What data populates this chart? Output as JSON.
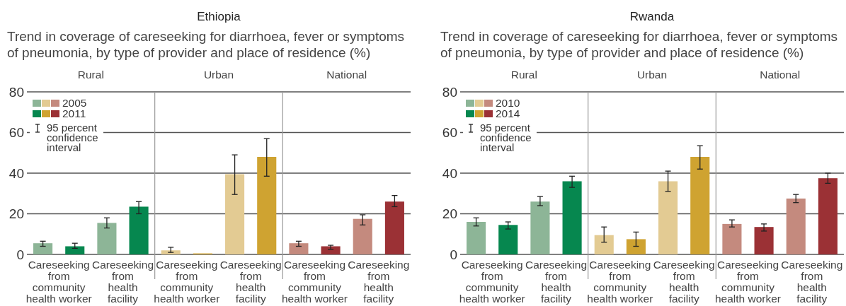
{
  "chart_data": [
    {
      "type": "bar",
      "title": "Ethiopia",
      "subtitle": "Trend in coverage of careseeking for diarrhoea, fever or symptoms of pneumonia, by type of provider and place of residence (%)",
      "categories": [
        "Careseeking\nfrom\ncommunity\nhealth worker",
        "Careseeking\nfrom\nhealth\nfacility",
        "Careseeking\nfrom\ncommunity\nhealth worker",
        "Careseeking\nfrom\nhealth\nfacility",
        "Careseeking\nfrom\ncommunity\nhealth worker",
        "Careseeking\nfrom\nhealth\nfacility"
      ],
      "series": [
        {
          "name": "2005",
          "colors": [
            "#8db597",
            "#8db597",
            "#e3cb93",
            "#e3cb93",
            "#c48a7e",
            "#c48a7e"
          ],
          "values": [
            5.5,
            15.5,
            2,
            39.5,
            5.5,
            17.5
          ],
          "errors": [
            [
              4,
              6.5
            ],
            [
              13,
              18
            ],
            [
              1,
              3.5
            ],
            [
              29.5,
              49
            ],
            [
              4,
              6.5
            ],
            [
              14.5,
              19.5
            ]
          ]
        },
        {
          "name": "2011",
          "colors": [
            "#06874f",
            "#06874f",
            "#cfa331",
            "#cfa331",
            "#9b3135",
            "#9b3135"
          ],
          "values": [
            4,
            23.5,
            0.5,
            48,
            4,
            26
          ],
          "errors": [
            [
              3,
              5.5
            ],
            [
              20,
              26
            ],
            null,
            [
              38.5,
              57
            ],
            [
              2.5,
              4.5
            ],
            [
              23.5,
              29
            ]
          ]
        }
      ],
      "ylim": [
        0,
        80
      ],
      "yticks": [
        0,
        20,
        40,
        60,
        80
      ],
      "grid": "y",
      "legend": "top left",
      "annotations": [
        "Rural",
        "Urban",
        "National",
        "95 percent confidence interval"
      ]
    },
    {
      "type": "bar",
      "title": "Rwanda",
      "subtitle": "Trend in coverage of careseeking for diarrhoea, fever or symptoms of pneumonia, by type of provider and place of residence (%)",
      "categories": [
        "Careseeking\nfrom\ncommunity\nhealth worker",
        "Careseeking\nfrom\nhealth\nfacility",
        "Careseeking\nfrom\ncommunity\nhealth worker",
        "Careseeking\nfrom\nhealth\nfacility",
        "Careseeking\nfrom\ncommunity\nhealth worker",
        "Careseeking\nfrom\nhealth\nfacility"
      ],
      "series": [
        {
          "name": "2010",
          "colors": [
            "#8db597",
            "#8db597",
            "#e3cb93",
            "#e3cb93",
            "#c48a7e",
            "#c48a7e"
          ],
          "values": [
            16,
            26,
            9.5,
            36,
            15,
            27.5
          ],
          "errors": [
            [
              14,
              18
            ],
            [
              24,
              28.5
            ],
            [
              6,
              13.5
            ],
            [
              31,
              41
            ],
            [
              13.5,
              17
            ],
            [
              25.5,
              29.5
            ]
          ]
        },
        {
          "name": "2014",
          "colors": [
            "#06874f",
            "#06874f",
            "#cfa331",
            "#cfa331",
            "#9b3135",
            "#9b3135"
          ],
          "values": [
            14.5,
            36,
            7.5,
            48,
            13.5,
            37.5
          ],
          "errors": [
            [
              12.5,
              16
            ],
            [
              33,
              38.5
            ],
            [
              4,
              11
            ],
            [
              42,
              53.5
            ],
            [
              11.5,
              15
            ],
            [
              35,
              40
            ]
          ]
        }
      ],
      "ylim": [
        0,
        80
      ],
      "yticks": [
        0,
        20,
        40,
        60,
        80
      ],
      "grid": "y",
      "legend": "top left",
      "annotations": [
        "Rural",
        "Urban",
        "National",
        "95 percent confidence interval"
      ]
    }
  ]
}
